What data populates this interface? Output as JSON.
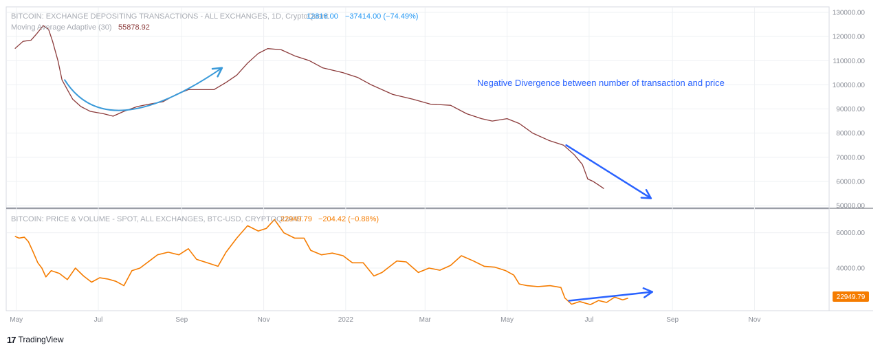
{
  "chart_data": [
    {
      "type": "line",
      "title": "BITCOIN: EXCHANGE DEPOSITING TRANSACTIONS - ALL EXCHANGES, 1D, CryptoQuant",
      "header_value": "12816.00",
      "header_change": "−37414.00 (−74.49%)",
      "indicator_label": "Moving Average Adaptive (30)",
      "indicator_value": "55878.92",
      "ylim": [
        50000,
        130000
      ],
      "y_ticks": [
        "50000.00",
        "60000.00",
        "70000.00",
        "80000.00",
        "90000.00",
        "100000.00",
        "110000.00",
        "120000.00",
        "130000.00"
      ],
      "series": [
        {
          "name": "Moving Average Adaptive (30)",
          "color": "#8b3a3a",
          "points": [
            [
              "2021-04-30",
              115000
            ],
            [
              "2021-05-06",
              118000
            ],
            [
              "2021-05-12",
              118500
            ],
            [
              "2021-05-16",
              121000
            ],
            [
              "2021-05-21",
              124500
            ],
            [
              "2021-05-25",
              123000
            ],
            [
              "2021-05-28",
              118000
            ],
            [
              "2021-06-01",
              110000
            ],
            [
              "2021-06-04",
              102000
            ],
            [
              "2021-06-08",
              98000
            ],
            [
              "2021-06-12",
              94000
            ],
            [
              "2021-06-18",
              91000
            ],
            [
              "2021-06-25",
              89000
            ],
            [
              "2021-07-05",
              88000
            ],
            [
              "2021-07-12",
              87000
            ],
            [
              "2021-07-20",
              89000
            ],
            [
              "2021-07-30",
              91000
            ],
            [
              "2021-08-08",
              92000
            ],
            [
              "2021-08-18",
              93000
            ],
            [
              "2021-08-28",
              96000
            ],
            [
              "2021-09-06",
              98000
            ],
            [
              "2021-09-16",
              98000
            ],
            [
              "2021-09-25",
              98000
            ],
            [
              "2021-10-04",
              101000
            ],
            [
              "2021-10-12",
              104000
            ],
            [
              "2021-10-20",
              109000
            ],
            [
              "2021-10-28",
              113000
            ],
            [
              "2021-11-04",
              115000
            ],
            [
              "2021-11-14",
              114500
            ],
            [
              "2021-11-24",
              112000
            ],
            [
              "2021-12-05",
              110000
            ],
            [
              "2021-12-15",
              107000
            ],
            [
              "2021-12-30",
              105000
            ],
            [
              "2022-01-10",
              103000
            ],
            [
              "2022-01-20",
              100000
            ],
            [
              "2022-02-05",
              96000
            ],
            [
              "2022-02-20",
              94000
            ],
            [
              "2022-03-05",
              92000
            ],
            [
              "2022-03-20",
              91500
            ],
            [
              "2022-04-01",
              88000
            ],
            [
              "2022-04-12",
              86000
            ],
            [
              "2022-04-20",
              85000
            ],
            [
              "2022-05-01",
              86000
            ],
            [
              "2022-05-10",
              84000
            ],
            [
              "2022-05-20",
              80000
            ],
            [
              "2022-06-01",
              77000
            ],
            [
              "2022-06-12",
              75000
            ],
            [
              "2022-06-20",
              71000
            ],
            [
              "2022-06-26",
              67000
            ],
            [
              "2022-06-30",
              61000
            ],
            [
              "2022-07-04",
              60000
            ],
            [
              "2022-07-08",
              58500
            ],
            [
              "2022-07-12",
              57000
            ]
          ]
        }
      ]
    },
    {
      "type": "line",
      "title": "BITCOIN: PRICE & VOLUME - SPOT, ALL EXCHANGES, BTC-USD, CRYPTOQUANT",
      "header_value": "22949.79",
      "header_change": "−204.42 (−0.88%)",
      "last_value_label": "22949.79",
      "ylim": [
        17000,
        70000
      ],
      "y_ticks": [
        "40000.00",
        "60000.00"
      ],
      "series": [
        {
          "name": "BITCOIN: PRICE & VOLUME - SPOT, ALL EXCHANGES, BTC-USD, CRYPTOQUANT",
          "color": "#f57c00",
          "points": [
            [
              "2021-04-30",
              58000
            ],
            [
              "2021-05-03",
              57000
            ],
            [
              "2021-05-07",
              57500
            ],
            [
              "2021-05-10",
              55000
            ],
            [
              "2021-05-13",
              50000
            ],
            [
              "2021-05-17",
              43000
            ],
            [
              "2021-05-20",
              40000
            ],
            [
              "2021-05-23",
              35000
            ],
            [
              "2021-05-27",
              38500
            ],
            [
              "2021-06-02",
              37000
            ],
            [
              "2021-06-08",
              33500
            ],
            [
              "2021-06-14",
              40000
            ],
            [
              "2021-06-20",
              35500
            ],
            [
              "2021-06-26",
              32000
            ],
            [
              "2021-07-02",
              34500
            ],
            [
              "2021-07-08",
              33800
            ],
            [
              "2021-07-14",
              32500
            ],
            [
              "2021-07-20",
              30000
            ],
            [
              "2021-07-26",
              38500
            ],
            [
              "2021-08-01",
              40000
            ],
            [
              "2021-08-08",
              44000
            ],
            [
              "2021-08-14",
              47500
            ],
            [
              "2021-08-22",
              49000
            ],
            [
              "2021-08-30",
              47500
            ],
            [
              "2021-09-06",
              51000
            ],
            [
              "2021-09-12",
              45000
            ],
            [
              "2021-09-20",
              43000
            ],
            [
              "2021-09-28",
              41000
            ],
            [
              "2021-10-04",
              49000
            ],
            [
              "2021-10-12",
              57000
            ],
            [
              "2021-10-20",
              64000
            ],
            [
              "2021-10-28",
              61000
            ],
            [
              "2021-11-03",
              62500
            ],
            [
              "2021-11-09",
              67500
            ],
            [
              "2021-11-16",
              60000
            ],
            [
              "2021-11-24",
              57000
            ],
            [
              "2021-12-01",
              57000
            ],
            [
              "2021-12-06",
              50000
            ],
            [
              "2021-12-14",
              47500
            ],
            [
              "2021-12-22",
              48500
            ],
            [
              "2021-12-30",
              47000
            ],
            [
              "2022-01-06",
              43000
            ],
            [
              "2022-01-14",
              43000
            ],
            [
              "2022-01-22",
              35500
            ],
            [
              "2022-01-28",
              37500
            ],
            [
              "2022-02-08",
              44000
            ],
            [
              "2022-02-15",
              43500
            ],
            [
              "2022-02-24",
              37500
            ],
            [
              "2022-03-04",
              40000
            ],
            [
              "2022-03-12",
              38800
            ],
            [
              "2022-03-20",
              41500
            ],
            [
              "2022-03-28",
              47000
            ],
            [
              "2022-04-06",
              44000
            ],
            [
              "2022-04-14",
              41000
            ],
            [
              "2022-04-22",
              40500
            ],
            [
              "2022-04-30",
              38500
            ],
            [
              "2022-05-06",
              36000
            ],
            [
              "2022-05-10",
              31000
            ],
            [
              "2022-05-16",
              30000
            ],
            [
              "2022-05-24",
              29500
            ],
            [
              "2022-06-02",
              30000
            ],
            [
              "2022-06-10",
              29000
            ],
            [
              "2022-06-13",
              23000
            ],
            [
              "2022-06-18",
              19500
            ],
            [
              "2022-06-24",
              21000
            ],
            [
              "2022-07-02",
              19300
            ],
            [
              "2022-07-08",
              21600
            ],
            [
              "2022-07-14",
              20500
            ],
            [
              "2022-07-20",
              23500
            ],
            [
              "2022-07-26",
              22000
            ],
            [
              "2022-07-30",
              22949.79
            ]
          ]
        }
      ]
    }
  ],
  "time_axis": {
    "ticks": [
      {
        "label": "May",
        "date": "2021-05-01"
      },
      {
        "label": "Jul",
        "date": "2021-07-01"
      },
      {
        "label": "Sep",
        "date": "2021-09-01"
      },
      {
        "label": "Nov",
        "date": "2021-11-01"
      },
      {
        "label": "2022",
        "date": "2022-01-01"
      },
      {
        "label": "Mar",
        "date": "2022-03-01"
      },
      {
        "label": "May",
        "date": "2022-05-01"
      },
      {
        "label": "Jul",
        "date": "2022-07-01"
      },
      {
        "label": "Sep",
        "date": "2022-09-01"
      },
      {
        "label": "Nov",
        "date": "2022-11-01"
      }
    ]
  },
  "annotation": {
    "text": "Negative Divergence between number of transaction and price"
  },
  "drawings": [
    {
      "name": "curved-arrow-up",
      "color": "#3a9ad9",
      "pane": 0,
      "points": [
        [
          "2021-06-06",
          102000
        ],
        [
          "2021-07-21",
          89500
        ],
        [
          "2021-10-01",
          107000
        ]
      ]
    },
    {
      "name": "arrow-down-right",
      "color": "#2962ff",
      "pane": 0,
      "points": [
        [
          "2022-06-14",
          75000
        ],
        [
          "2022-08-16",
          53000
        ]
      ]
    },
    {
      "name": "arrow-up-right",
      "color": "#2962ff",
      "pane": 1,
      "points": [
        [
          "2022-06-16",
          21500
        ],
        [
          "2022-08-17",
          26500
        ]
      ]
    }
  ],
  "colors": {
    "series_top": "#8b3a3a",
    "series_bottom": "#f57c00",
    "badge_bg": "#f57c00",
    "annotation": "#2962ff",
    "grid": "#eef0f3"
  },
  "footer": {
    "brand": "TradingView",
    "logo_text": "17"
  }
}
